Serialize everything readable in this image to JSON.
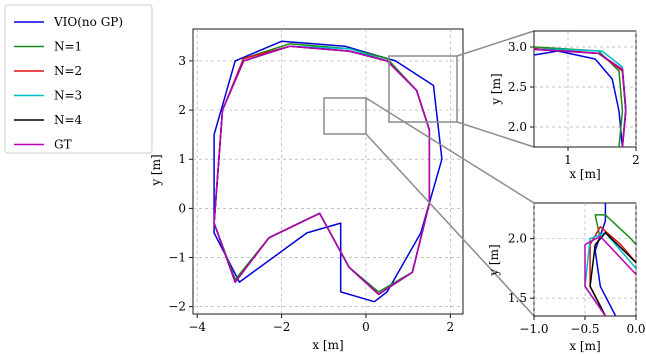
{
  "colors": {
    "VIO(no GP)": "#0000dd",
    "N=1": "#1a8a1a",
    "N=2": "#dd1111",
    "N=3": "#00bbcc",
    "N=4": "#000000",
    "GT": "#bb00bb"
  },
  "legend": {
    "placement": "left",
    "entries": [
      "VIO(no GP)",
      "N=1",
      "N=2",
      "N=3",
      "N=4",
      "GT"
    ]
  },
  "chart_data": [
    {
      "id": "main",
      "type": "line",
      "xlabel": "x [m]",
      "ylabel": "y [m]",
      "xlim": [
        -4.1,
        2.3
      ],
      "ylim": [
        -2.15,
        3.65
      ],
      "xticks": [
        -4,
        -2,
        0,
        2
      ],
      "xtick_labels": [
        "−4",
        "−2",
        "0",
        "2"
      ],
      "yticks": [
        -2,
        -1,
        0,
        1,
        2,
        3
      ],
      "ytick_labels": [
        "−2",
        "−1",
        "0",
        "1",
        "2",
        "3"
      ],
      "grid": true,
      "series": [
        {
          "name": "VIO(no GP)",
          "x": [
            -3.0,
            -3.6,
            -3.6,
            -3.1,
            -2.0,
            -0.5,
            0.7,
            1.6,
            1.8,
            1.3,
            0.5,
            0.2,
            -0.6,
            -0.6,
            -1.4,
            -3.0
          ],
          "y": [
            -1.5,
            -0.5,
            1.5,
            3.0,
            3.4,
            3.3,
            3.0,
            2.5,
            1.0,
            -0.5,
            -1.7,
            -1.9,
            -1.7,
            -0.3,
            -0.5,
            -1.5
          ]
        },
        {
          "name": "N=1",
          "x": [
            -3.1,
            -3.6,
            -3.4,
            -2.9,
            -1.8,
            -0.4,
            0.5,
            1.2,
            1.5,
            1.5,
            1.1,
            0.3,
            -0.4,
            -1.1,
            -2.3,
            -3.1
          ],
          "y": [
            -1.45,
            -0.3,
            2.0,
            3.05,
            3.35,
            3.25,
            3.05,
            2.4,
            1.6,
            0.1,
            -1.3,
            -1.7,
            -1.2,
            -0.1,
            -0.6,
            -1.45
          ]
        },
        {
          "name": "N=2",
          "x": [
            -3.1,
            -3.6,
            -3.4,
            -2.9,
            -1.8,
            -0.4,
            0.5,
            1.2,
            1.5,
            1.5,
            1.1,
            0.3,
            -0.4,
            -1.1,
            -2.3,
            -3.1
          ],
          "y": [
            -1.5,
            -0.3,
            2.0,
            3.05,
            3.3,
            3.2,
            3.0,
            2.4,
            1.6,
            0.1,
            -1.3,
            -1.75,
            -1.2,
            -0.1,
            -0.6,
            -1.5
          ]
        },
        {
          "name": "N=3",
          "x": [
            -3.1,
            -3.6,
            -3.4,
            -2.9,
            -1.8,
            -0.4,
            0.5,
            1.2,
            1.5,
            1.5,
            1.1,
            0.3,
            -0.4,
            -1.1,
            -2.3,
            -3.1
          ],
          "y": [
            -1.5,
            -0.3,
            2.0,
            3.0,
            3.3,
            3.25,
            3.0,
            2.4,
            1.6,
            0.1,
            -1.3,
            -1.75,
            -1.2,
            -0.1,
            -0.6,
            -1.5
          ]
        },
        {
          "name": "N=4",
          "x": [
            -3.1,
            -3.6,
            -3.4,
            -2.9,
            -1.8,
            -0.4,
            0.5,
            1.2,
            1.5,
            1.5,
            1.1,
            0.3,
            -0.4,
            -1.1,
            -2.3,
            -3.1
          ],
          "y": [
            -1.5,
            -0.3,
            2.0,
            3.0,
            3.3,
            3.2,
            3.0,
            2.4,
            1.6,
            0.1,
            -1.3,
            -1.75,
            -1.2,
            -0.1,
            -0.6,
            -1.5
          ]
        },
        {
          "name": "GT",
          "x": [
            -3.1,
            -3.6,
            -3.4,
            -2.9,
            -1.8,
            -0.4,
            0.5,
            1.2,
            1.5,
            1.5,
            1.1,
            0.3,
            -0.4,
            -1.1,
            -2.3,
            -3.1
          ],
          "y": [
            -1.5,
            -0.3,
            2.0,
            3.0,
            3.3,
            3.2,
            3.0,
            2.4,
            1.6,
            0.1,
            -1.3,
            -1.75,
            -1.2,
            -0.1,
            -0.6,
            -1.5
          ]
        }
      ]
    },
    {
      "id": "inset-top",
      "type": "line",
      "xlabel": "x [m]",
      "ylabel": "y [m]",
      "xlim": [
        0.5,
        2.0
      ],
      "ylim": [
        1.75,
        3.2
      ],
      "xticks": [
        1,
        2
      ],
      "xtick_labels": [
        "1",
        "2"
      ],
      "yticks": [
        2.0,
        2.5,
        3.0
      ],
      "ytick_labels": [
        "2.0",
        "2.5",
        "3.0"
      ],
      "grid": true,
      "series": [
        {
          "name": "VIO(no GP)",
          "x": [
            0.5,
            0.85,
            1.4,
            1.65,
            1.75,
            1.8
          ],
          "y": [
            2.9,
            2.95,
            2.85,
            2.6,
            2.2,
            1.75
          ]
        },
        {
          "name": "N=1",
          "x": [
            0.5,
            0.9,
            1.45,
            1.75,
            1.8,
            1.75
          ],
          "y": [
            3.0,
            2.98,
            2.95,
            2.7,
            2.2,
            1.75
          ]
        },
        {
          "name": "N=2",
          "x": [
            0.5,
            0.9,
            1.45,
            1.8,
            1.85,
            1.8
          ],
          "y": [
            2.98,
            2.96,
            2.92,
            2.7,
            2.2,
            1.75
          ]
        },
        {
          "name": "N=3",
          "x": [
            0.5,
            0.9,
            1.5,
            1.8,
            1.85,
            1.8
          ],
          "y": [
            2.97,
            2.97,
            2.95,
            2.75,
            2.25,
            1.75
          ]
        },
        {
          "name": "N=4",
          "x": [
            0.5,
            0.9,
            1.45,
            1.8,
            1.85,
            1.8
          ],
          "y": [
            2.97,
            2.95,
            2.92,
            2.72,
            2.2,
            1.75
          ]
        },
        {
          "name": "GT",
          "x": [
            0.5,
            0.9,
            1.45,
            1.8,
            1.85,
            1.8
          ],
          "y": [
            2.97,
            2.95,
            2.92,
            2.72,
            2.2,
            1.75
          ]
        }
      ]
    },
    {
      "id": "inset-bottom",
      "type": "line",
      "xlabel": "x [m]",
      "ylabel": "y [m]",
      "xlim": [
        -1.0,
        0.0
      ],
      "ylim": [
        1.35,
        2.3
      ],
      "xticks": [
        -1.0,
        -0.5,
        0.0
      ],
      "xtick_labels": [
        "−1.0",
        "−0.5",
        "0.0"
      ],
      "yticks": [
        1.5,
        2.0
      ],
      "ytick_labels": [
        "1.5",
        "2.0"
      ],
      "grid": true,
      "series": [
        {
          "name": "VIO(no GP)",
          "x": [
            -0.2,
            -0.35,
            -0.4,
            -0.3,
            -0.3
          ],
          "y": [
            1.35,
            1.6,
            1.9,
            2.15,
            2.3
          ]
        },
        {
          "name": "N=1",
          "x": [
            -0.35,
            -0.4,
            -0.3,
            -0.05,
            0.0
          ],
          "y": [
            2.0,
            2.2,
            2.2,
            2.0,
            1.95
          ]
        },
        {
          "name": "N=2",
          "x": [
            -0.3,
            -0.45,
            -0.45,
            -0.35,
            -0.15,
            0.0
          ],
          "y": [
            1.35,
            1.6,
            1.95,
            2.1,
            1.95,
            1.8
          ]
        },
        {
          "name": "N=3",
          "x": [
            -0.3,
            -0.5,
            -0.45,
            -0.3,
            0.0
          ],
          "y": [
            1.35,
            1.6,
            2.0,
            2.05,
            1.75
          ]
        },
        {
          "name": "N=4",
          "x": [
            -0.3,
            -0.45,
            -0.4,
            -0.3,
            0.0
          ],
          "y": [
            1.35,
            1.6,
            1.95,
            2.05,
            1.8
          ]
        },
        {
          "name": "GT",
          "x": [
            -0.3,
            -0.5,
            -0.5,
            -0.35,
            0.0
          ],
          "y": [
            1.35,
            1.6,
            1.95,
            2.02,
            1.7
          ]
        }
      ]
    }
  ]
}
